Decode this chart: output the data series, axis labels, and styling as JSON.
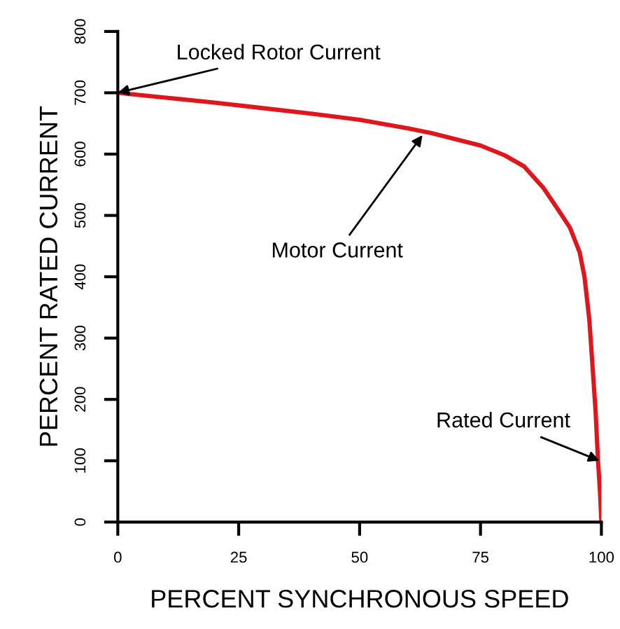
{
  "chart_data": {
    "type": "line",
    "xlabel": "PERCENT SYNCHRONOUS SPEED",
    "ylabel": "PERCENT RATED CURRENT",
    "x": [
      0,
      10,
      20,
      30,
      40,
      50,
      60,
      65,
      70,
      75,
      80,
      84,
      88,
      91,
      93.5,
      95.5,
      96.5,
      97.5,
      98.2,
      98.8,
      99.3,
      99.7,
      100
    ],
    "series": [
      {
        "color": "#e0161d",
        "values": [
          700,
          692,
          684,
          675,
          666,
          656,
          642,
          634,
          624,
          614,
          598,
          580,
          545,
          510,
          480,
          440,
          400,
          330,
          250,
          180,
          100,
          50,
          0
        ]
      }
    ],
    "xlim": [
      0,
      100
    ],
    "ylim": [
      0,
      800
    ],
    "xticks": [
      0,
      25,
      50,
      75,
      100
    ],
    "yticks": [
      0,
      100,
      200,
      300,
      400,
      500,
      600,
      700,
      800
    ],
    "grid": false,
    "legend": false,
    "marker": "none",
    "line_style": "solid",
    "annotations": [
      {
        "text": "Locked Rotor Current",
        "x": 0,
        "y": 700
      },
      {
        "text": "Motor Current",
        "x": 63,
        "y": 631
      },
      {
        "text": "Rated Current",
        "x": 99.6,
        "y": 100
      }
    ]
  }
}
